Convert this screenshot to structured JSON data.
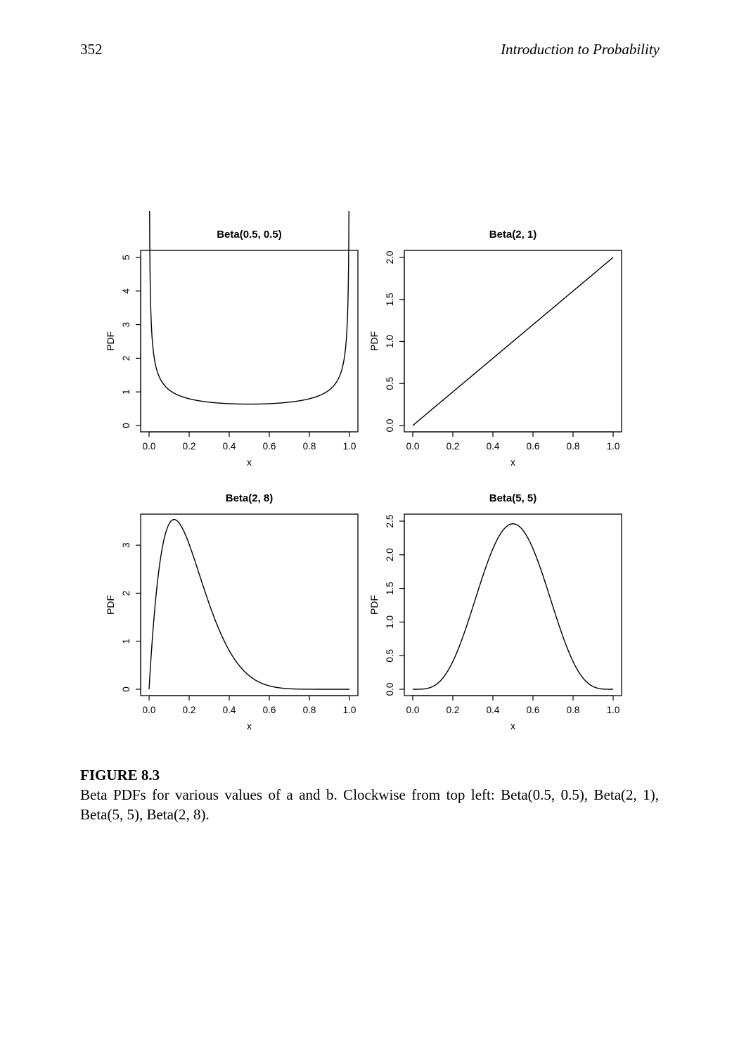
{
  "header": {
    "page_number": "352",
    "running_title": "Introduction to Probability"
  },
  "caption": {
    "label": "FIGURE 8.3",
    "text": "Beta PDFs for various values of a and b. Clockwise from top left: Beta(0.5, 0.5), Beta(2, 1), Beta(5, 5), Beta(2, 8)."
  },
  "chart_data": [
    {
      "type": "line",
      "title": "Beta(0.5, 0.5)",
      "xlabel": "x",
      "ylabel": "PDF",
      "a": 0.5,
      "b": 0.5,
      "xlim": [
        0,
        1
      ],
      "ylim": [
        0,
        5
      ],
      "x_ticks": [
        "0.0",
        "0.2",
        "0.4",
        "0.6",
        "0.8",
        "1.0"
      ],
      "y_ticks": [
        "0",
        "1",
        "2",
        "3",
        "4",
        "5"
      ],
      "x_curve_range": [
        0.001,
        0.999
      ],
      "grid": false
    },
    {
      "type": "line",
      "title": "Beta(2, 1)",
      "xlabel": "x",
      "ylabel": "PDF",
      "a": 2,
      "b": 1,
      "xlim": [
        0,
        1
      ],
      "ylim": [
        0,
        2
      ],
      "x_ticks": [
        "0.0",
        "0.2",
        "0.4",
        "0.6",
        "0.8",
        "1.0"
      ],
      "y_ticks": [
        "0.0",
        "0.5",
        "1.0",
        "1.5",
        "2.0"
      ],
      "x_curve_range": [
        0,
        1
      ],
      "grid": false
    },
    {
      "type": "line",
      "title": "Beta(2, 8)",
      "xlabel": "x",
      "ylabel": "PDF",
      "a": 2,
      "b": 8,
      "xlim": [
        0,
        1
      ],
      "ylim": [
        0,
        3.5
      ],
      "x_ticks": [
        "0.0",
        "0.2",
        "0.4",
        "0.6",
        "0.8",
        "1.0"
      ],
      "y_ticks": [
        "0",
        "1",
        "2",
        "3"
      ],
      "x_curve_range": [
        0,
        1
      ],
      "grid": false
    },
    {
      "type": "line",
      "title": "Beta(5, 5)",
      "xlabel": "x",
      "ylabel": "PDF",
      "a": 5,
      "b": 5,
      "xlim": [
        0,
        1
      ],
      "ylim": [
        0,
        2.5
      ],
      "x_ticks": [
        "0.0",
        "0.2",
        "0.4",
        "0.6",
        "0.8",
        "1.0"
      ],
      "y_ticks": [
        "0.0",
        "0.5",
        "1.0",
        "1.5",
        "2.0",
        "2.5"
      ],
      "x_curve_range": [
        0,
        1
      ],
      "grid": false
    }
  ]
}
